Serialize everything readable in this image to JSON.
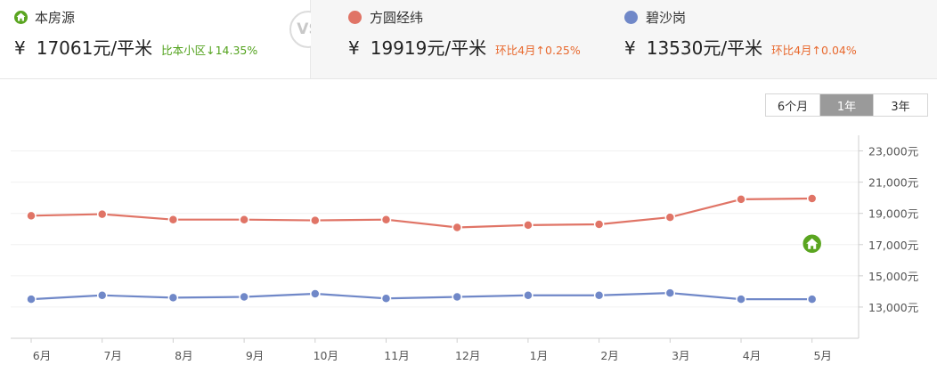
{
  "header": {
    "self": {
      "name": "本房源",
      "currency": "¥",
      "price": "17061元/平米",
      "change": "比本小区↓14.35%",
      "color": "#5aa520"
    },
    "vs_label": "VS",
    "compare": [
      {
        "name": "方圆经纬",
        "currency": "¥",
        "price": "19919元/平米",
        "change": "环比4月↑0.25%",
        "color": "#e07466"
      },
      {
        "name": "碧沙岗",
        "currency": "¥",
        "price": "13530元/平米",
        "change": "环比4月↑0.04%",
        "color": "#7088c8"
      }
    ]
  },
  "range_tabs": [
    "6个月",
    "1年",
    "3年"
  ],
  "active_range": "1年",
  "chart_data": {
    "type": "line",
    "categories": [
      "6月",
      "7月",
      "8月",
      "9月",
      "10月",
      "11月",
      "12月",
      "1月",
      "2月",
      "3月",
      "4月",
      "5月"
    ],
    "series": [
      {
        "name": "方圆经纬",
        "color": "#e07466",
        "values": [
          18850,
          18950,
          18600,
          18600,
          18550,
          18600,
          18100,
          18250,
          18300,
          18750,
          19900,
          19950
        ]
      },
      {
        "name": "碧沙岗",
        "color": "#7088c8",
        "values": [
          13500,
          13750,
          13600,
          13650,
          13850,
          13550,
          13650,
          13750,
          13750,
          13900,
          13500,
          13500
        ]
      }
    ],
    "marker": {
      "icon": "home-icon",
      "category": "5月",
      "value": 17061,
      "color": "#5aa520"
    },
    "y_ticks": [
      "13,000元",
      "15,000元",
      "17,000元",
      "19,000元",
      "21,000元",
      "23,000元"
    ],
    "y_tick_values": [
      13000,
      15000,
      17000,
      19000,
      21000,
      23000
    ],
    "ylim": [
      11000,
      24000
    ],
    "y_axis_position": "right",
    "grid": true
  }
}
